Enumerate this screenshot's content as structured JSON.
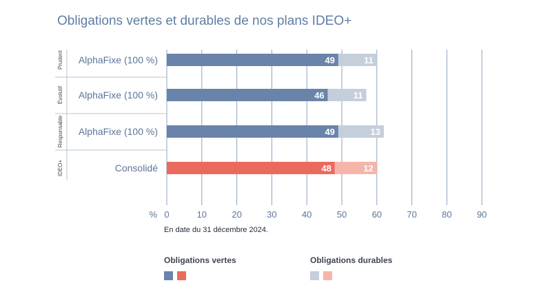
{
  "title": "Obligations vertes et durables de nos plans IDEO+",
  "chart_data": {
    "type": "bar",
    "orientation": "horizontal",
    "stacked": true,
    "xlabel": "%",
    "xlim": [
      0,
      90
    ],
    "ticks": [
      0,
      10,
      20,
      30,
      40,
      50,
      60,
      70,
      80,
      90
    ],
    "grid": true,
    "groups": [
      "Prudent",
      "Évolutif",
      "Responsable",
      "IDEO+"
    ],
    "categories": [
      "AlphaFixe (100 %)",
      "AlphaFixe (100 %)",
      "AlphaFixe (100 %)",
      "Consolidé"
    ],
    "series": [
      {
        "name": "Obligations vertes",
        "values": [
          49,
          46,
          49,
          48
        ],
        "colors": [
          "#6a84a9",
          "#6a84a9",
          "#6a84a9",
          "#ec6a5d"
        ]
      },
      {
        "name": "Obligations durables",
        "values": [
          11,
          11,
          13,
          12
        ],
        "colors": [
          "#c5cedb",
          "#c5cedb",
          "#c5cedb",
          "#f6b5aa"
        ]
      }
    ],
    "legend_position": "bottom"
  },
  "note": "En date du 31 décembre 2024.",
  "legend": {
    "green_label": "Obligations vertes",
    "sustainable_label": "Obligations durables",
    "colors": {
      "green_plans": "#6a84a9",
      "green_consolidated": "#ec6a5d",
      "sustainable_plans": "#c5cedb",
      "sustainable_consolidated": "#f6b5aa"
    }
  }
}
